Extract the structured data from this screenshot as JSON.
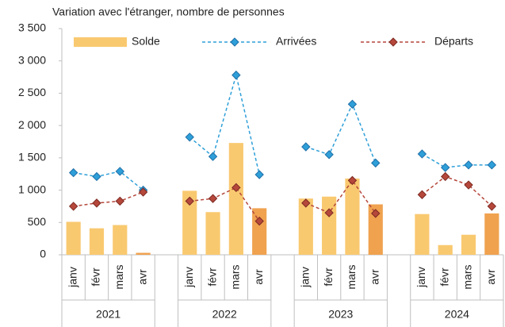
{
  "chart_data": {
    "type": "bar",
    "title": "Variation avec l'étranger, nombre de personnes",
    "categories": [
      "janv",
      "févr",
      "mars",
      "avr",
      null,
      "janv",
      "févr",
      "mars",
      "avr",
      null,
      "janv",
      "févr",
      "mars",
      "avr",
      null,
      "janv",
      "févr",
      "mars",
      "avr"
    ],
    "groups": [
      "2021",
      "2022",
      "2023",
      "2024"
    ],
    "series": [
      {
        "name": "Solde",
        "type": "bar",
        "color": "#f9c970",
        "highlight_color": "#f0a24f",
        "highlight": [
          false,
          false,
          false,
          true,
          null,
          false,
          false,
          false,
          true,
          null,
          false,
          false,
          false,
          true,
          null,
          false,
          false,
          false,
          true
        ],
        "values": [
          510,
          410,
          460,
          30,
          null,
          990,
          660,
          1730,
          720,
          null,
          870,
          900,
          1180,
          780,
          null,
          630,
          150,
          310,
          640
        ]
      },
      {
        "name": "Arrivées",
        "type": "line",
        "color": "#2e9fd8",
        "marker_stroke": "#1f6fa8",
        "values": [
          1270,
          1210,
          1290,
          1000,
          null,
          1820,
          1520,
          2780,
          1240,
          null,
          1670,
          1550,
          2330,
          1420,
          null,
          1560,
          1350,
          1390,
          1390
        ]
      },
      {
        "name": "Départs",
        "type": "line",
        "color": "#b5473b",
        "marker_stroke": "#7d2a22",
        "values": [
          750,
          800,
          830,
          970,
          null,
          830,
          870,
          1040,
          520,
          null,
          800,
          650,
          1150,
          640,
          null,
          930,
          1210,
          1080,
          750
        ]
      }
    ],
    "ylim": [
      0,
      3500
    ],
    "yticks": [
      0,
      500,
      {
        "value": 1000,
        "label": "1 000"
      },
      {
        "value": 1500,
        "label": "1 500"
      },
      {
        "value": 2000,
        "label": "2 000"
      },
      {
        "value": 2500,
        "label": "2 500"
      },
      {
        "value": 3000,
        "label": "3 000"
      },
      {
        "value": 3500,
        "label": "3 500"
      }
    ],
    "grid": false,
    "legend": "top"
  }
}
